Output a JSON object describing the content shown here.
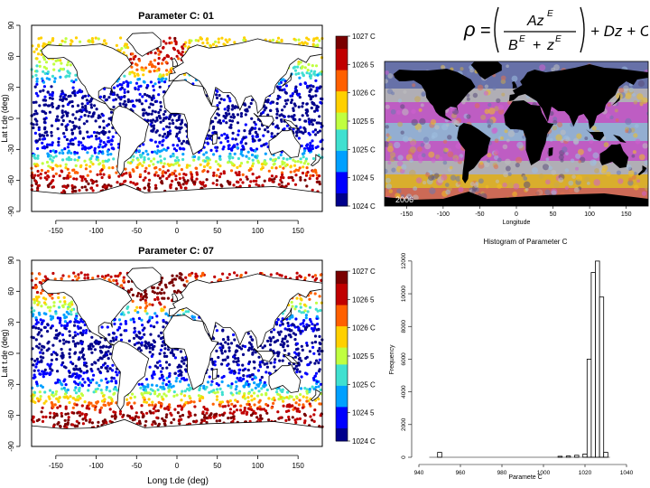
{
  "chart_data": [
    {
      "type": "scatter",
      "title": "Parameter C: 01",
      "xlabel": "",
      "ylabel": "Lat t.de (deg)",
      "xlim": [
        -180,
        180
      ],
      "ylim": [
        -90,
        90
      ],
      "x_ticks": [
        "-150",
        "-100",
        "-50",
        "0",
        "50",
        "100",
        "150"
      ],
      "y_ticks": [
        "-90",
        "-60",
        "-30",
        "0",
        "30",
        "60",
        "90"
      ],
      "colorbar": {
        "min": 1024.0,
        "max": 1027.0,
        "ticks": [
          "1027 C",
          "1026 5",
          "1026 C",
          "1025 5",
          "1025 C",
          "1024 5",
          "1024 C"
        ]
      },
      "bands": [
        {
          "lat": 60,
          "value": 1025.8
        },
        {
          "lat": 45,
          "value": 1025.2
        },
        {
          "lat": 30,
          "value": 1024.2
        },
        {
          "lat": 15,
          "value": 1024.0
        },
        {
          "lat": 0,
          "value": 1024.0
        },
        {
          "lat": -15,
          "value": 1024.1
        },
        {
          "lat": -30,
          "value": 1024.4
        },
        {
          "lat": -40,
          "value": 1025.2
        },
        {
          "lat": -50,
          "value": 1026.3
        },
        {
          "lat": -60,
          "value": 1026.8
        }
      ]
    },
    {
      "type": "scatter",
      "title": "Parameter C: 07",
      "xlabel": "Long t.de (deg)",
      "ylabel": "Lat t.de (deg)",
      "xlim": [
        -180,
        180
      ],
      "ylim": [
        -90,
        90
      ],
      "x_ticks": [
        "-150",
        "-100",
        "-50",
        "0",
        "50",
        "100",
        "150"
      ],
      "y_ticks": [
        "-90",
        "-60",
        "-30",
        "0",
        "30",
        "60",
        "90"
      ],
      "colorbar": {
        "min": 1024.0,
        "max": 1027.0,
        "ticks": [
          "1027 C",
          "1026 5",
          "1026 C",
          "1025 5",
          "1025 C",
          "1024 5",
          "1024 C"
        ]
      },
      "bands": [
        {
          "lat": 60,
          "value": 1026.5
        },
        {
          "lat": 45,
          "value": 1025.4
        },
        {
          "lat": 30,
          "value": 1024.3
        },
        {
          "lat": 15,
          "value": 1024.0
        },
        {
          "lat": 0,
          "value": 1024.0
        },
        {
          "lat": -15,
          "value": 1024.1
        },
        {
          "lat": -30,
          "value": 1024.6
        },
        {
          "lat": -40,
          "value": 1025.5
        },
        {
          "lat": -50,
          "value": 1026.4
        },
        {
          "lat": -60,
          "value": 1026.9
        }
      ]
    },
    {
      "type": "heatmap",
      "title": "",
      "xlabel": "Longitude",
      "label": "2006",
      "x_ticks": [
        "-150",
        "-100",
        "-50",
        "0",
        "50",
        "100",
        "150"
      ]
    },
    {
      "type": "bar",
      "title": "Histogram of Parameter C",
      "xlabel": "Paramete C",
      "ylabel": "Frequency",
      "x_ticks": [
        "940",
        "960",
        "980",
        "1000",
        "1020",
        "1040"
      ],
      "y_ticks": [
        "0",
        "2000",
        "4000",
        "6000",
        "8000",
        "10000",
        "12000"
      ],
      "xlim": [
        940,
        1040
      ],
      "ylim": [
        0,
        12600
      ],
      "bins": [
        {
          "x": 950,
          "value": 300
        },
        {
          "x": 1008,
          "value": 60
        },
        {
          "x": 1012,
          "value": 80
        },
        {
          "x": 1016,
          "value": 120
        },
        {
          "x": 1020,
          "value": 200
        },
        {
          "x": 1022,
          "value": 6000
        },
        {
          "x": 1024,
          "value": 11300
        },
        {
          "x": 1026,
          "value": 12000
        },
        {
          "x": 1028,
          "value": 9800
        },
        {
          "x": 1030,
          "value": 300
        }
      ]
    }
  ],
  "formula": {
    "rho": "ρ",
    "eq": "=",
    "numerator": "Az",
    "numerator_exp": "E",
    "denominator_b": "B",
    "denominator_b_exp": "E",
    "plus": "+",
    "denominator_z": "z",
    "denominator_z_exp": "E",
    "tail": "+ Dz + C"
  },
  "colors": {
    "land": "#ffffff",
    "coast": "#000000",
    "scale": [
      "#00008c",
      "#0000ff",
      "#00a0ff",
      "#40e0d0",
      "#c0ff40",
      "#ffd000",
      "#ff6000",
      "#c00000",
      "#7a0000"
    ],
    "composite_land": "#000000",
    "composite_ocean": [
      "#5a4d7a",
      "#6a78b0",
      "#c0c0c0",
      "#9ec0e0",
      "#c8a850",
      "#f0c020",
      "#e07050",
      "#d060d0"
    ]
  }
}
